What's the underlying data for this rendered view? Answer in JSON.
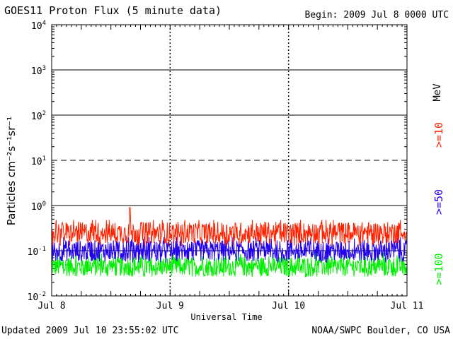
{
  "header": {
    "title": "GOES11 Proton Flux (5 minute data)",
    "begin": "Begin: 2009 Jul 8 0000 UTC"
  },
  "footer": {
    "updated": "Updated 2009 Jul 10 23:55:02 UTC",
    "source": "NOAA/SWPC Boulder, CO USA"
  },
  "chart_data": {
    "type": "line",
    "title": "GOES11 Proton Flux (5 minute data)",
    "xlabel": "Universal Time",
    "ylabel": "Particles cm⁻²s⁻¹sr⁻¹",
    "unit": "MeV",
    "y_scale": "log",
    "ylim": [
      0.01,
      10000
    ],
    "y_ticks": [
      {
        "base": "10",
        "exp": "4"
      },
      {
        "base": "10",
        "exp": "3"
      },
      {
        "base": "10",
        "exp": "2"
      },
      {
        "base": "10",
        "exp": "1"
      },
      {
        "base": "10",
        "exp": "0"
      },
      {
        "base": "10",
        "exp": "-1"
      },
      {
        "base": "10",
        "exp": "-2"
      }
    ],
    "x_ticks": [
      "Jul 8",
      "Jul 9",
      "Jul 10",
      "Jul 11"
    ],
    "xlim_days": [
      0,
      3
    ],
    "grid": true,
    "threshold_lines": [
      {
        "value": 1000,
        "style": "solid"
      },
      {
        "value": 100,
        "style": "solid"
      },
      {
        "value": 10,
        "style": "dashed"
      },
      {
        "value": 1,
        "style": "solid"
      },
      {
        "value": 0.1,
        "style": "solid"
      }
    ],
    "series": [
      {
        "name": ">=10",
        "color": "#ff2200",
        "typical": 0.25,
        "range": [
          0.13,
          0.48
        ],
        "spike": {
          "day": 0.66,
          "value": 0.9
        }
      },
      {
        "name": ">=50",
        "color": "#2200ee",
        "typical": 0.1,
        "range": [
          0.055,
          0.2
        ]
      },
      {
        "name": ">=100",
        "color": "#00ee00",
        "typical": 0.045,
        "range": [
          0.027,
          0.09
        ]
      }
    ]
  }
}
